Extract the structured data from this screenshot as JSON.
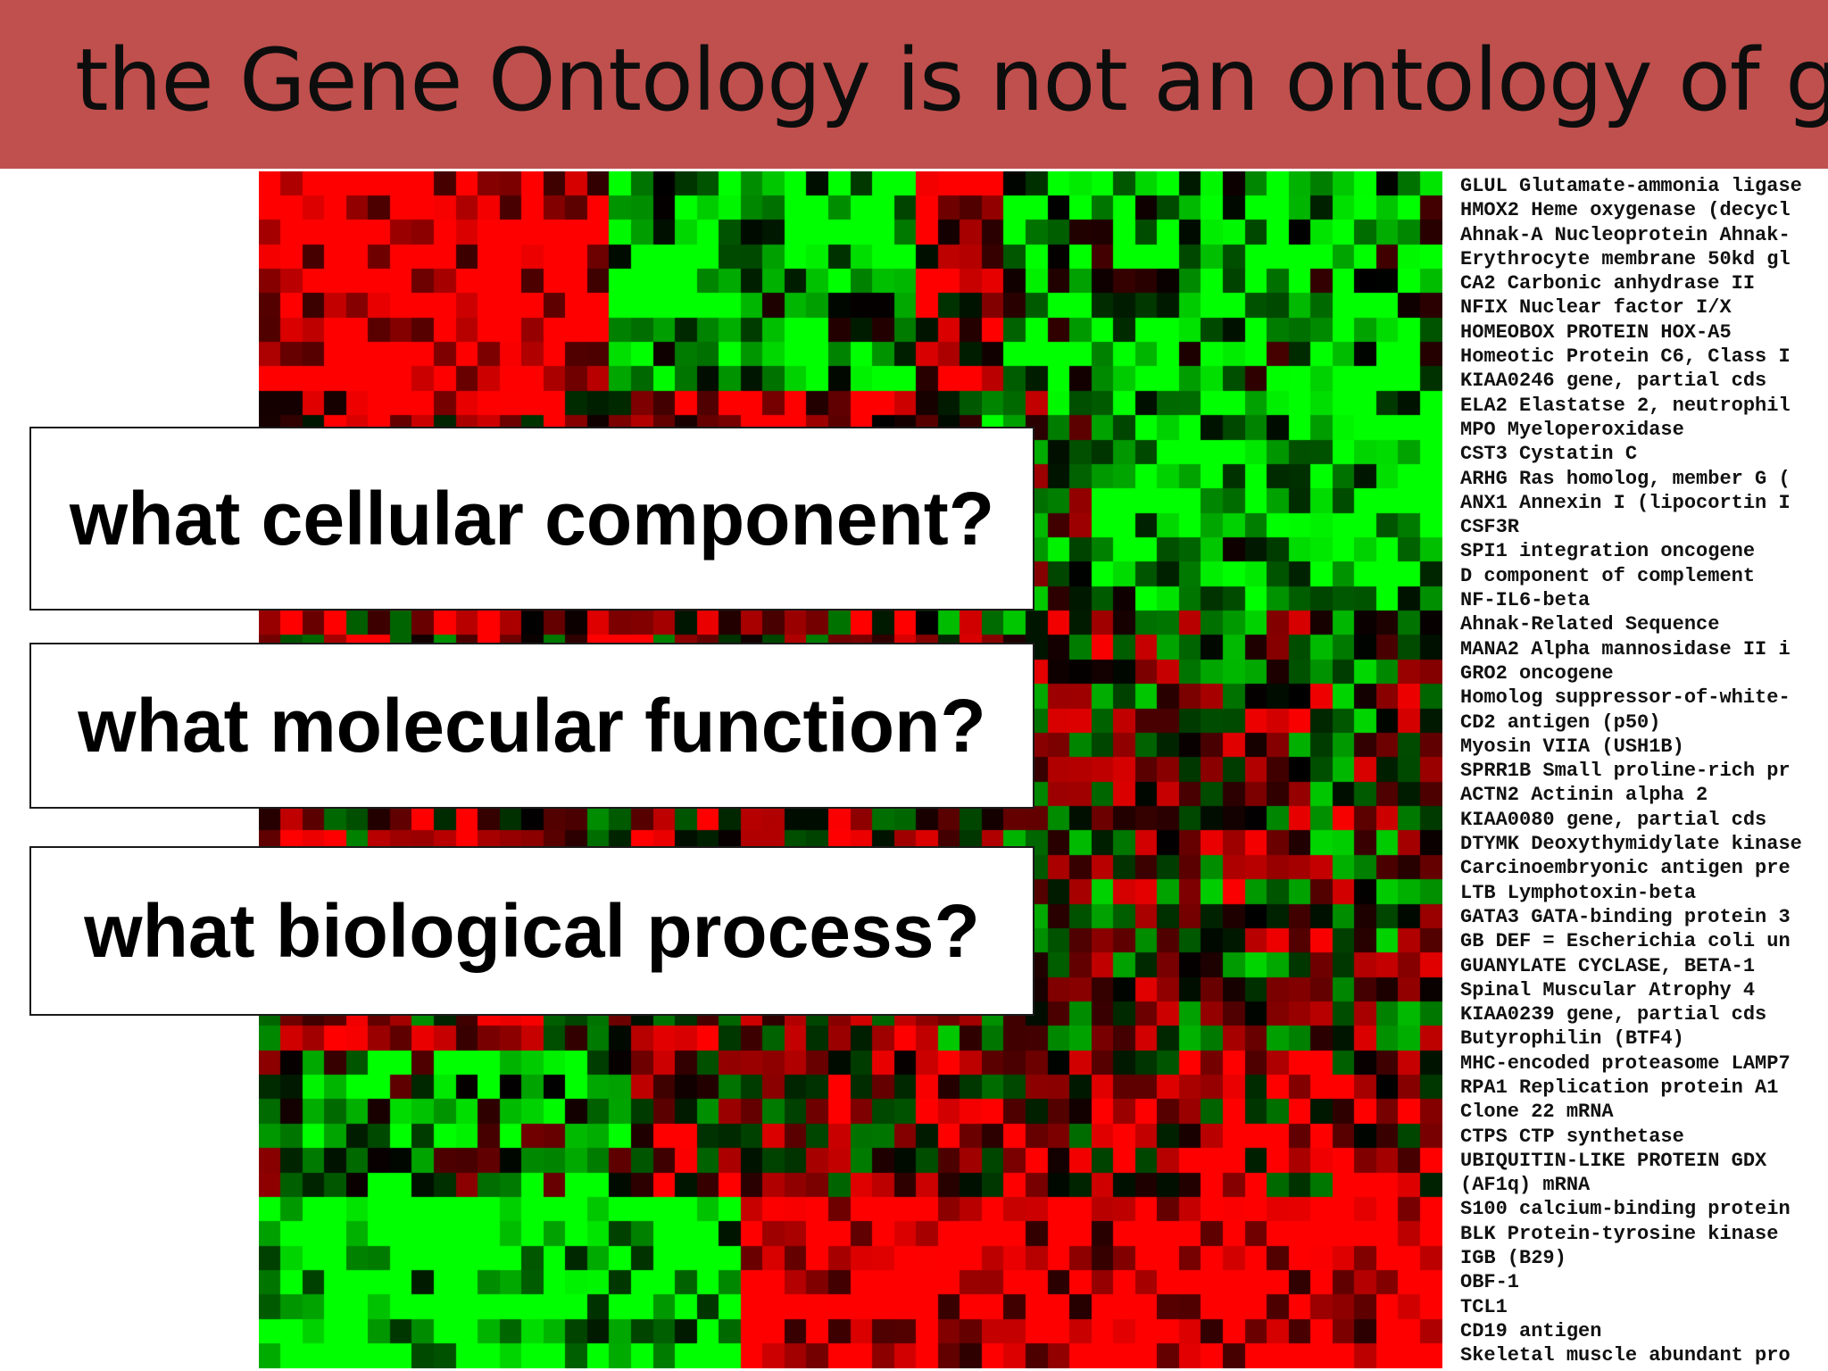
{
  "slide": {
    "title": "the Gene Ontology is not an ontology of ge",
    "title_bar_color": "#bf504d",
    "questions": [
      "what cellular component?",
      "what molecular function?",
      "what biological process?"
    ],
    "heatmap": {
      "colors": {
        "high": "#ff0000",
        "low": "#00ff00",
        "neutral": "#000000"
      }
    },
    "genes": [
      "GLUL Glutamate-ammonia ligase",
      "HMOX2 Heme oxygenase (decycl",
      "Ahnak-A Nucleoprotein Ahnak-",
      "Erythrocyte membrane 50kd gl",
      "CA2 Carbonic anhydrase II",
      "NFIX Nuclear factor I/X",
      "HOMEOBOX PROTEIN HOX-A5",
      "Homeotic Protein C6, Class I",
      "KIAA0246 gene, partial cds",
      "ELA2 Elastatse 2, neutrophil",
      "MPO Myeloperoxidase",
      "CST3 Cystatin C",
      "ARHG Ras homolog, member G (",
      "ANX1 Annexin I (lipocortin I",
      "CSF3R",
      "SPI1 integration oncogene",
      "D component of complement",
      "NF-IL6-beta",
      "Ahnak-Related Sequence",
      "MANA2 Alpha mannosidase II i",
      "GRO2 oncogene",
      "Homolog suppressor-of-white-",
      "CD2 antigen (p50)",
      "Myosin VIIA (USH1B)",
      "SPRR1B Small proline-rich pr",
      "ACTN2 Actinin alpha 2",
      "KIAA0080 gene, partial cds",
      "DTYMK Deoxythymidylate kinase",
      "Carcinoembryonic antigen pre",
      "LTB Lymphotoxin-beta",
      "GATA3 GATA-binding protein 3",
      "GB DEF = Escherichia coli un",
      "GUANYLATE CYCLASE, BETA-1",
      "Spinal Muscular Atrophy 4",
      "KIAA0239 gene, partial cds",
      "Butyrophilin (BTF4)",
      "MHC-encoded proteasome LAMP7",
      "RPA1 Replication protein A1",
      "Clone 22 mRNA",
      "CTPS CTP synthetase",
      "UBIQUITIN-LIKE PROTEIN GDX",
      "(AF1q) mRNA",
      "S100 calcium-binding protein",
      "BLK Protein-tyrosine kinase",
      "IGB (B29)",
      "OBF-1",
      "TCL1",
      "CD19 antigen",
      "Skeletal muscle abundant pro"
    ]
  }
}
